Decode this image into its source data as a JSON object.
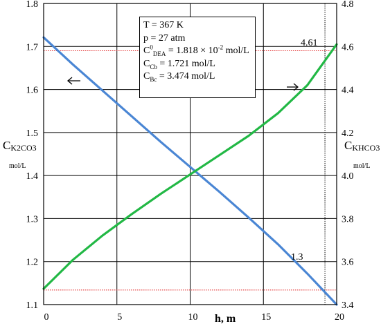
{
  "chart_data": {
    "type": "line",
    "xlabel": "h, m",
    "x_ticks": [
      "0",
      "5",
      "10",
      "15",
      "20"
    ],
    "xlim": [
      0,
      20
    ],
    "y_left": {
      "label_main": "C",
      "label_sub": "K2CO3",
      "unit": "mol/L",
      "lim": [
        1.1,
        1.8
      ],
      "ticks": [
        "1.1",
        "1.2",
        "1.3",
        "1.4",
        "1.5",
        "1.6",
        "1.7",
        "1.8"
      ]
    },
    "y_right": {
      "label_main": "C",
      "label_sub": "KHCO3",
      "unit": "mol/L",
      "lim": [
        3.4,
        4.8
      ],
      "ticks": [
        "3.4",
        "3.6",
        "3.8",
        "4.0",
        "4.2",
        "4.4",
        "4.6",
        "4.8"
      ]
    },
    "grid": true,
    "series": [
      {
        "axis": "left",
        "color": "#4a86d4",
        "x": [
          0,
          2,
          4,
          6,
          8,
          10,
          12,
          14,
          16,
          18,
          20
        ],
        "y": [
          1.721,
          1.658,
          1.598,
          1.538,
          1.478,
          1.42,
          1.362,
          1.302,
          1.24,
          1.172,
          1.1
        ]
      },
      {
        "axis": "right",
        "color": "#22b845",
        "x": [
          0,
          2,
          4,
          6,
          8,
          10,
          12,
          14,
          16,
          18,
          20
        ],
        "y": [
          3.474,
          3.608,
          3.72,
          3.82,
          3.915,
          4.005,
          4.095,
          4.185,
          4.29,
          4.42,
          4.61
        ]
      }
    ],
    "reference_lines": {
      "color": "#e02020",
      "horizontal_left_y": [
        1.69,
        1.134
      ],
      "vertical_x": 19.2
    },
    "annotations": {
      "value_right": "4.61",
      "value_left": "1.3"
    },
    "info_box": {
      "T": "T = 367 K",
      "p": "p =  27 atm",
      "c0_main": "C",
      "c0_sup": "0",
      "c0_sub": "DEA",
      "c0_value": " = 1.818 × 10",
      "c0_exp": "-2",
      "c0_unit": " mol/L",
      "ccb_main": "C",
      "ccb_sub": "Cb",
      "ccb_value": " = 1.721 mol/L",
      "cbc_main": "C",
      "cbc_sub": "Bc",
      "cbc_value": " = 3.474 mol/L"
    }
  }
}
